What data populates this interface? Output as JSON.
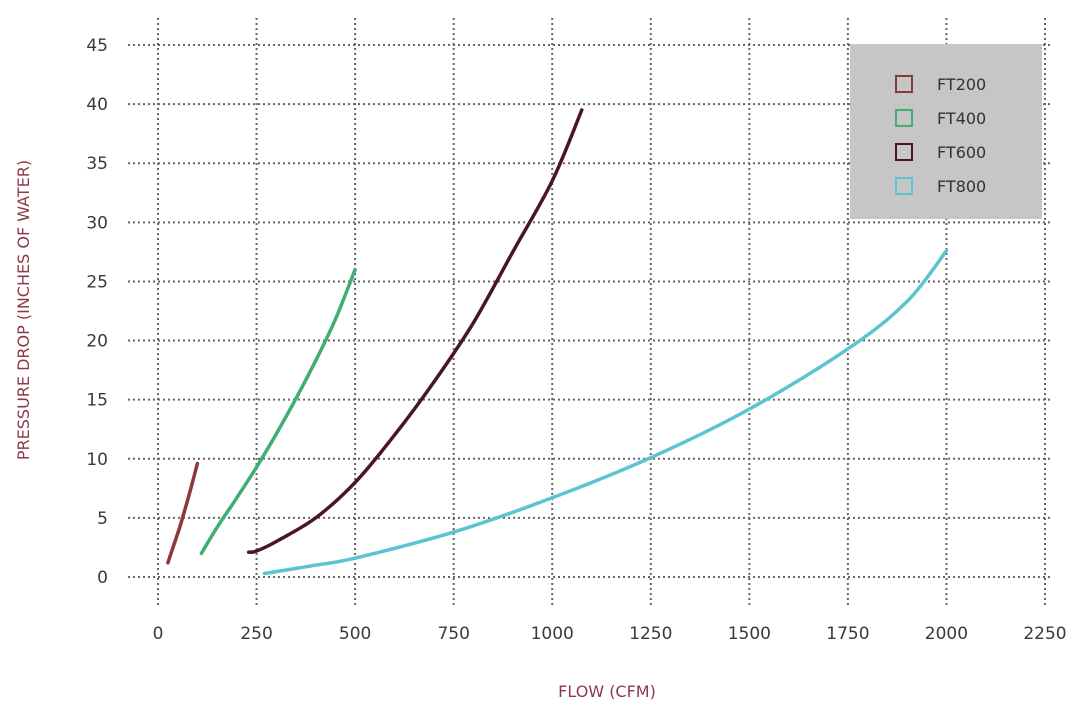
{
  "chart_data": {
    "type": "line",
    "title": "",
    "xlabel": "FLOW (CFM)",
    "ylabel": "PRESSURE DROP (INCHES OF WATER)",
    "xlim": [
      0,
      2250
    ],
    "ylim": [
      0,
      45
    ],
    "xticks": [
      0,
      250,
      500,
      750,
      1000,
      1250,
      1500,
      1750,
      2000,
      2250
    ],
    "yticks": [
      0,
      5,
      10,
      15,
      20,
      25,
      30,
      35,
      40,
      45
    ],
    "grid": true,
    "legend_position": "top-right",
    "legend_background": "#c6c6c6",
    "series": [
      {
        "name": "FT200",
        "color": "#8b3a3a",
        "x": [
          25,
          40,
          55,
          70,
          85,
          100
        ],
        "y": [
          1.2,
          2.7,
          4.2,
          5.9,
          7.7,
          9.6
        ]
      },
      {
        "name": "FT400",
        "color": "#3fae73",
        "x": [
          110,
          150,
          200,
          250,
          300,
          350,
          400,
          450,
          500
        ],
        "y": [
          2,
          4.2,
          6.7,
          9.3,
          12.1,
          15.1,
          18.3,
          21.8,
          26
        ]
      },
      {
        "name": "FT600",
        "color": "#4a1528",
        "x": [
          230,
          250,
          300,
          400,
          500,
          600,
          700,
          800,
          900,
          1000,
          1075
        ],
        "y": [
          2.1,
          2.2,
          3,
          5,
          8,
          12,
          16.5,
          21.5,
          27.5,
          33.5,
          39.5
        ]
      },
      {
        "name": "FT800",
        "color": "#5cc3d1",
        "x": [
          270,
          400,
          500,
          750,
          1000,
          1250,
          1500,
          1750,
          1900,
          2000
        ],
        "y": [
          0.3,
          1,
          1.6,
          3.8,
          6.7,
          10.1,
          14.2,
          19.3,
          23.3,
          27.6
        ]
      }
    ]
  }
}
